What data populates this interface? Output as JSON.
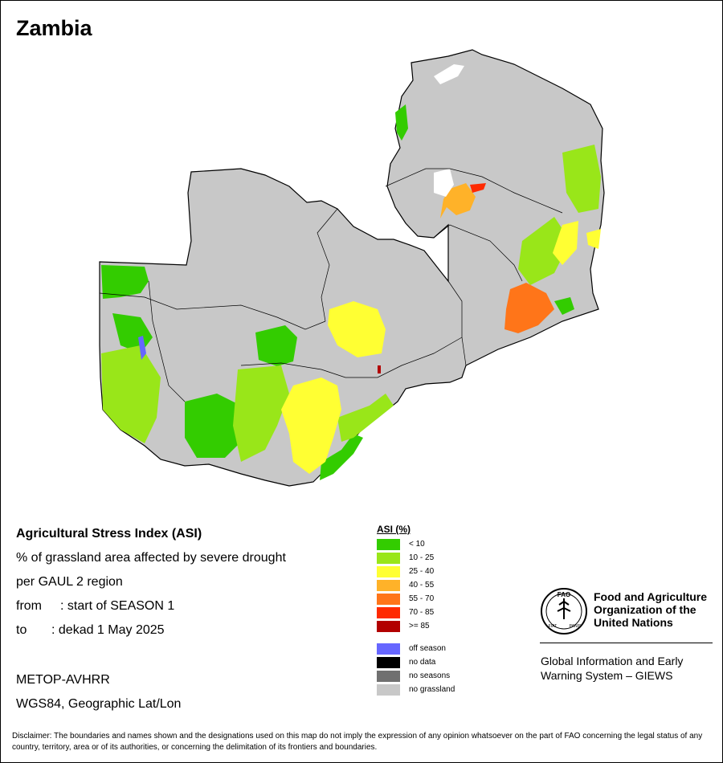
{
  "map_title": "Zambia",
  "info": {
    "line1": "Agricultural Stress Index (ASI)",
    "line2": "% of grassland area affected by severe drought",
    "line3": "per GAUL 2 region",
    "from_label": "from",
    "from_value": ": start of SEASON 1",
    "to_label": "to",
    "to_value": ": dekad 1 May 2025",
    "sensor": "METOP-AVHRR",
    "projection": "WGS84, Geographic Lat/Lon"
  },
  "legend": {
    "title": "ASI (%)",
    "classes": [
      {
        "label": "< 10",
        "color": "#33cc00"
      },
      {
        "label": "10 - 25",
        "color": "#99e619"
      },
      {
        "label": "25 - 40",
        "color": "#ffff33"
      },
      {
        "label": "40 - 55",
        "color": "#ffb229"
      },
      {
        "label": "55 - 70",
        "color": "#ff7519"
      },
      {
        "label": "70 - 85",
        "color": "#ff2a00"
      },
      {
        "label": ">= 85",
        "color": "#b20000"
      }
    ],
    "other": [
      {
        "label": "off season",
        "color": "#6666ff"
      },
      {
        "label": "no data",
        "color": "#000000"
      },
      {
        "label": "no seasons",
        "color": "#707070"
      },
      {
        "label": "no grassland",
        "color": "#c8c8c8"
      }
    ]
  },
  "org": {
    "name_line1": "Food and Agriculture",
    "name_line2": "Organization of the",
    "name_line3": "United Nations",
    "logo_text": "FAO",
    "logo_motto_left": "FIAT",
    "logo_motto_right": "PANIS",
    "system_line1": "Global Information and Early",
    "system_line2": "Warning System – GIEWS"
  },
  "disclaimer": "Disclaimer: The boundaries and names shown and the designations used on this map do not imply the expression of any opinion whatsoever on the part of FAO concerning the legal status of any country, territory, area or of its authorities, or concerning the delimitation of its frontiers and boundaries.",
  "colors": {
    "no_grassland": "#c8c8c8",
    "lt10": "#33cc00",
    "c10_25": "#99e619",
    "c25_40": "#ffff33",
    "c40_55": "#ffb229",
    "c55_70": "#ff7519",
    "c70_85": "#ff2a00",
    "ge85": "#b20000",
    "off_season": "#6666ff",
    "boundary": "#000000"
  }
}
